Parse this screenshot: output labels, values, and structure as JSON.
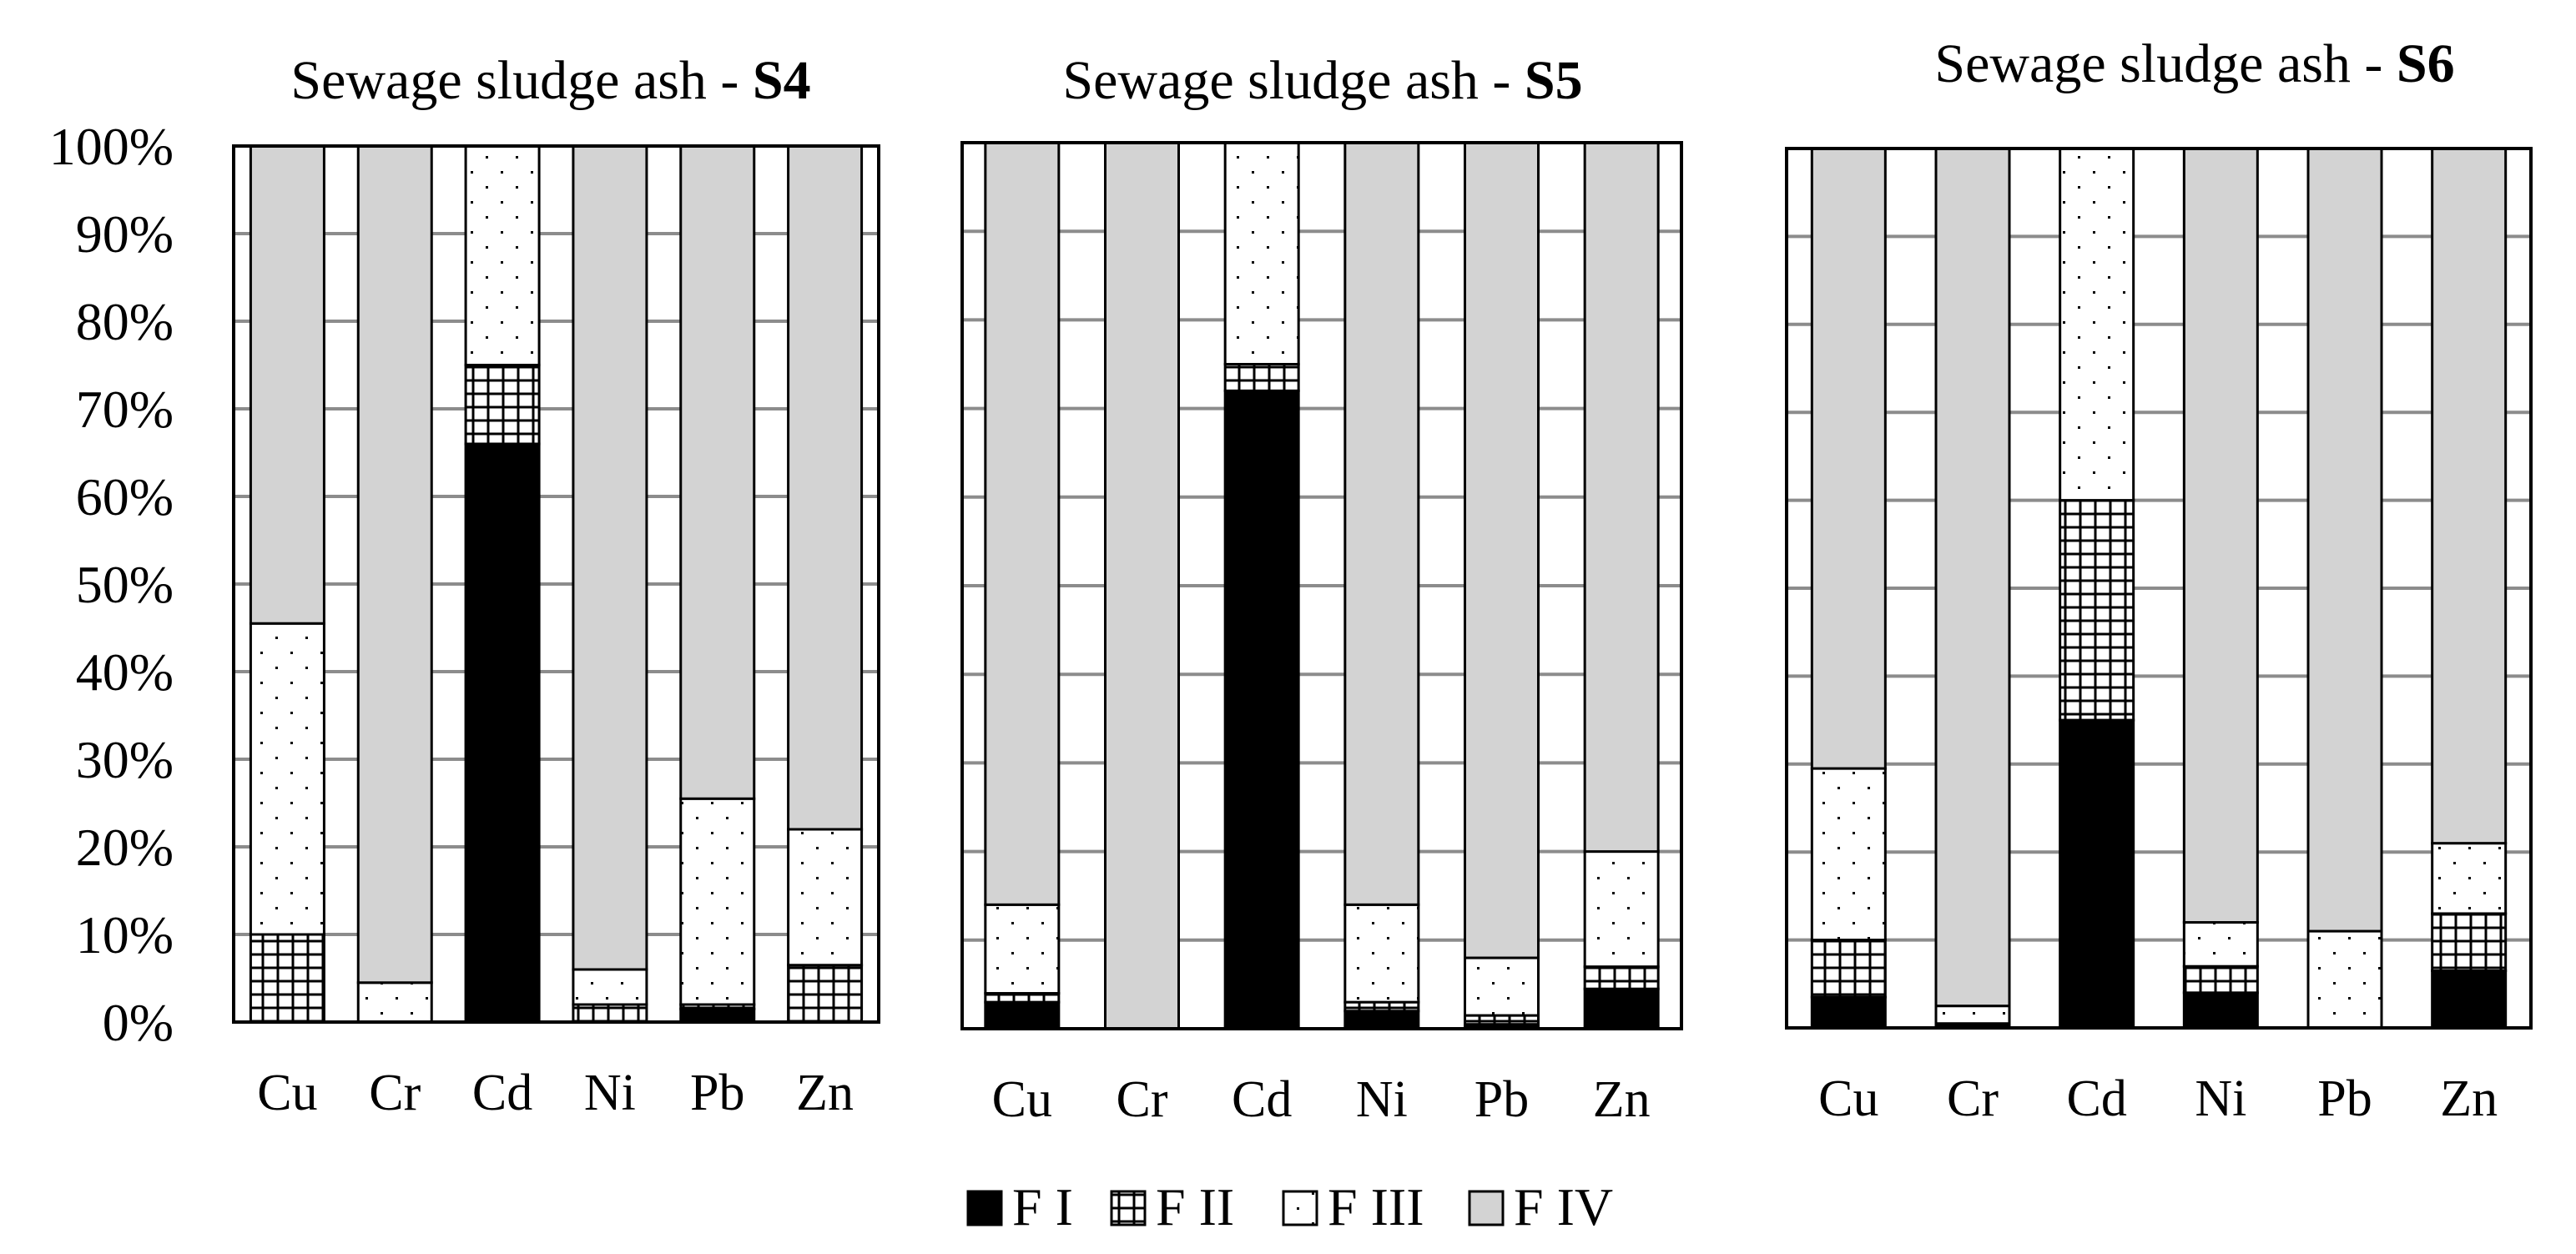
{
  "chart_data": [
    {
      "type": "bar",
      "stacked": "percent",
      "title_prefix": "Sewage sludge ash - ",
      "title_sample": "S4",
      "categories": [
        "Cu",
        "Cr",
        "Cd",
        "Ni",
        "Pb",
        "Zn"
      ],
      "ylim": [
        0,
        100
      ],
      "yticks": [
        "0%",
        "10%",
        "20%",
        "30%",
        "40%",
        "50%",
        "60%",
        "70%",
        "80%",
        "90%",
        "100%"
      ],
      "grid": true,
      "series": [
        {
          "name": "F I",
          "values": [
            0,
            0,
            66,
            0,
            1.5,
            0
          ]
        },
        {
          "name": "F II",
          "values": [
            10,
            0,
            9,
            2,
            0.5,
            6.5
          ]
        },
        {
          "name": "F III",
          "values": [
            35.5,
            4.5,
            25,
            4,
            23.5,
            15.5
          ]
        },
        {
          "name": "F IV",
          "values": [
            54.5,
            95.5,
            0,
            94,
            74.5,
            78
          ]
        }
      ]
    },
    {
      "type": "bar",
      "stacked": "percent",
      "title_prefix": "Sewage sludge ash - ",
      "title_sample": "S5",
      "categories": [
        "Cu",
        "Cr",
        "Cd",
        "Ni",
        "Pb",
        "Zn"
      ],
      "ylim": [
        0,
        100
      ],
      "grid": true,
      "series": [
        {
          "name": "F I",
          "values": [
            3,
            0,
            72,
            2,
            0.5,
            4.5
          ]
        },
        {
          "name": "F II",
          "values": [
            1,
            0,
            3,
            1,
            1,
            2.5
          ]
        },
        {
          "name": "F III",
          "values": [
            10,
            0,
            25,
            11,
            6.5,
            13
          ]
        },
        {
          "name": "F IV",
          "values": [
            86,
            100,
            0,
            86,
            92,
            80
          ]
        }
      ]
    },
    {
      "type": "bar",
      "stacked": "percent",
      "title_prefix": "Sewage sludge ash - ",
      "title_sample": "S6",
      "categories": [
        "Cu",
        "Cr",
        "Cd",
        "Ni",
        "Pb",
        "Zn"
      ],
      "ylim": [
        0,
        100
      ],
      "grid": true,
      "series": [
        {
          "name": "F I",
          "values": [
            3.5,
            0.5,
            35,
            4,
            0,
            6.5
          ]
        },
        {
          "name": "F II",
          "values": [
            6.5,
            0,
            25,
            3,
            0,
            6.5
          ]
        },
        {
          "name": "F III",
          "values": [
            19.5,
            2,
            40,
            5,
            11,
            8
          ]
        },
        {
          "name": "F IV",
          "values": [
            70.5,
            97.5,
            0,
            88,
            89,
            79
          ]
        }
      ]
    }
  ],
  "legend": {
    "placement": "bottom-center",
    "items": [
      "F I",
      "F II",
      "F III",
      "F IV"
    ]
  },
  "colors": {
    "F I": "#000000",
    "F II": "#ffffff",
    "F III": "#ffffff",
    "F IV": "#d3d3d3",
    "grid": "#8c8c8c",
    "frame": "#000000"
  },
  "patterns": {
    "F I": "solid",
    "F II": "grid-hatch",
    "F III": "dots",
    "F IV": "solid"
  }
}
